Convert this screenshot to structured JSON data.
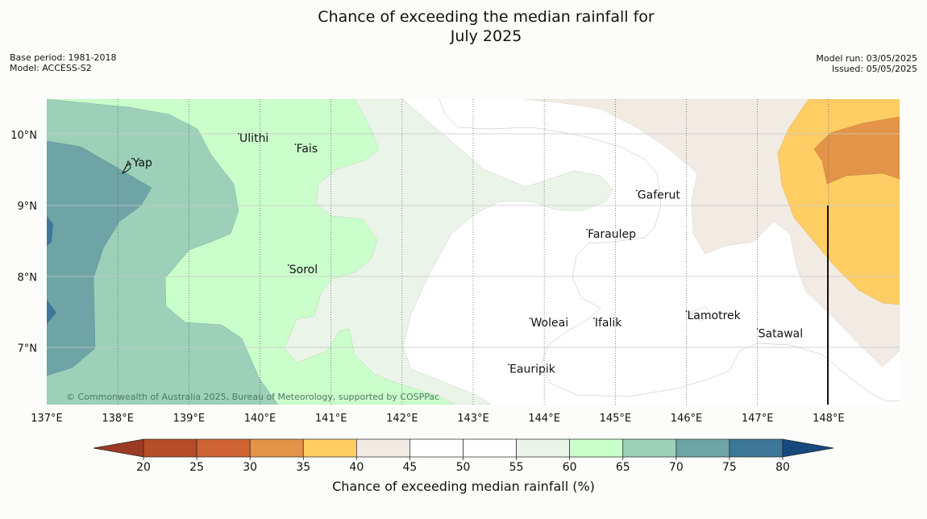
{
  "title_line1": "Chance of exceeding the median rainfall for",
  "title_line2": "July 2025",
  "meta_left": {
    "base_period": "Base period: 1981-2018",
    "model": "Model: ACCESS-S2"
  },
  "meta_right": {
    "model_run": "Model run: 03/05/2025",
    "issued": "Issued: 05/05/2025"
  },
  "copyright": "© Commonwealth of Australia 2025, Bureau of Meteorology, supported by COSPPac",
  "map": {
    "lon_range": [
      137,
      149
    ],
    "lat_range": [
      6.2,
      10.5
    ],
    "lon_ticks": [
      "137°E",
      "138°E",
      "139°E",
      "140°E",
      "141°E",
      "142°E",
      "143°E",
      "144°E",
      "145°E",
      "146°E",
      "147°E",
      "148°E"
    ],
    "lat_ticks": [
      "10°N",
      "9°N",
      "8°N",
      "7°N"
    ],
    "places": [
      {
        "name": "Yap",
        "lon": 138.2,
        "lat": 9.55
      },
      {
        "name": "Ulithi",
        "lon": 139.7,
        "lat": 9.9
      },
      {
        "name": "Fais",
        "lon": 140.5,
        "lat": 9.75
      },
      {
        "name": "Gaferut",
        "lon": 145.3,
        "lat": 9.1
      },
      {
        "name": "Faraulep",
        "lon": 144.6,
        "lat": 8.55
      },
      {
        "name": "Sorol",
        "lon": 140.4,
        "lat": 8.05
      },
      {
        "name": "Woleai",
        "lon": 143.8,
        "lat": 7.3
      },
      {
        "name": "Ifalik",
        "lon": 144.7,
        "lat": 7.3
      },
      {
        "name": "Lamotrek",
        "lon": 146.0,
        "lat": 7.4
      },
      {
        "name": "Satawal",
        "lon": 147.0,
        "lat": 7.15
      },
      {
        "name": "Eauripik",
        "lon": 143.5,
        "lat": 6.65
      }
    ],
    "marker_line_lon": 148
  },
  "colorbar": {
    "label": "Chance of exceeding median rainfall (%)",
    "ticks": [
      "20",
      "25",
      "30",
      "35",
      "40",
      "45",
      "50",
      "55",
      "60",
      "65",
      "70",
      "75",
      "80"
    ],
    "colors": [
      "#b54d28",
      "#cf6434",
      "#e39448",
      "#fecd64",
      "#f1ebe4",
      "#ffffff",
      "#ffffff",
      "#ebf4e8",
      "#caffcb",
      "#9cd0b9",
      "#6ea4a5",
      "#3f7798"
    ],
    "under_color": "#9b3a22",
    "over_color": "#17497e"
  }
}
